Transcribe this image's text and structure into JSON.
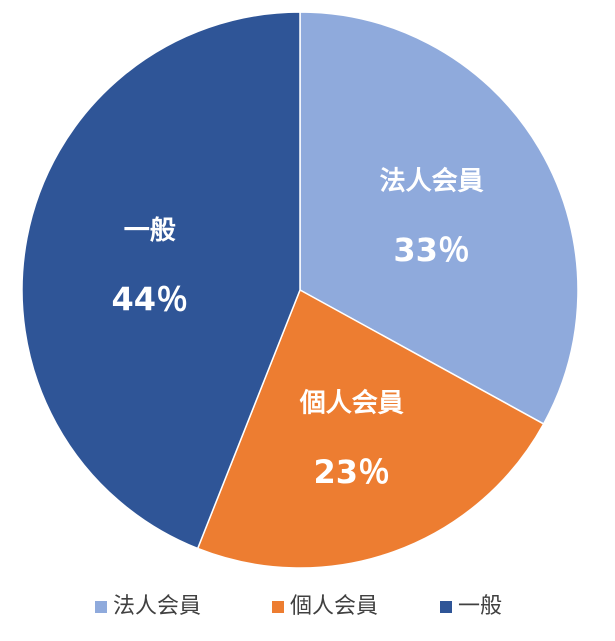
{
  "chart_data": {
    "type": "pie",
    "categories": [
      "法人会員",
      "個人会員",
      "一般"
    ],
    "values": [
      33,
      23,
      44
    ],
    "value_labels": [
      "33％",
      "23％",
      "44％"
    ],
    "colors": [
      "#8faadc",
      "#ed7d31",
      "#2f5597"
    ],
    "legend": "bottom"
  }
}
